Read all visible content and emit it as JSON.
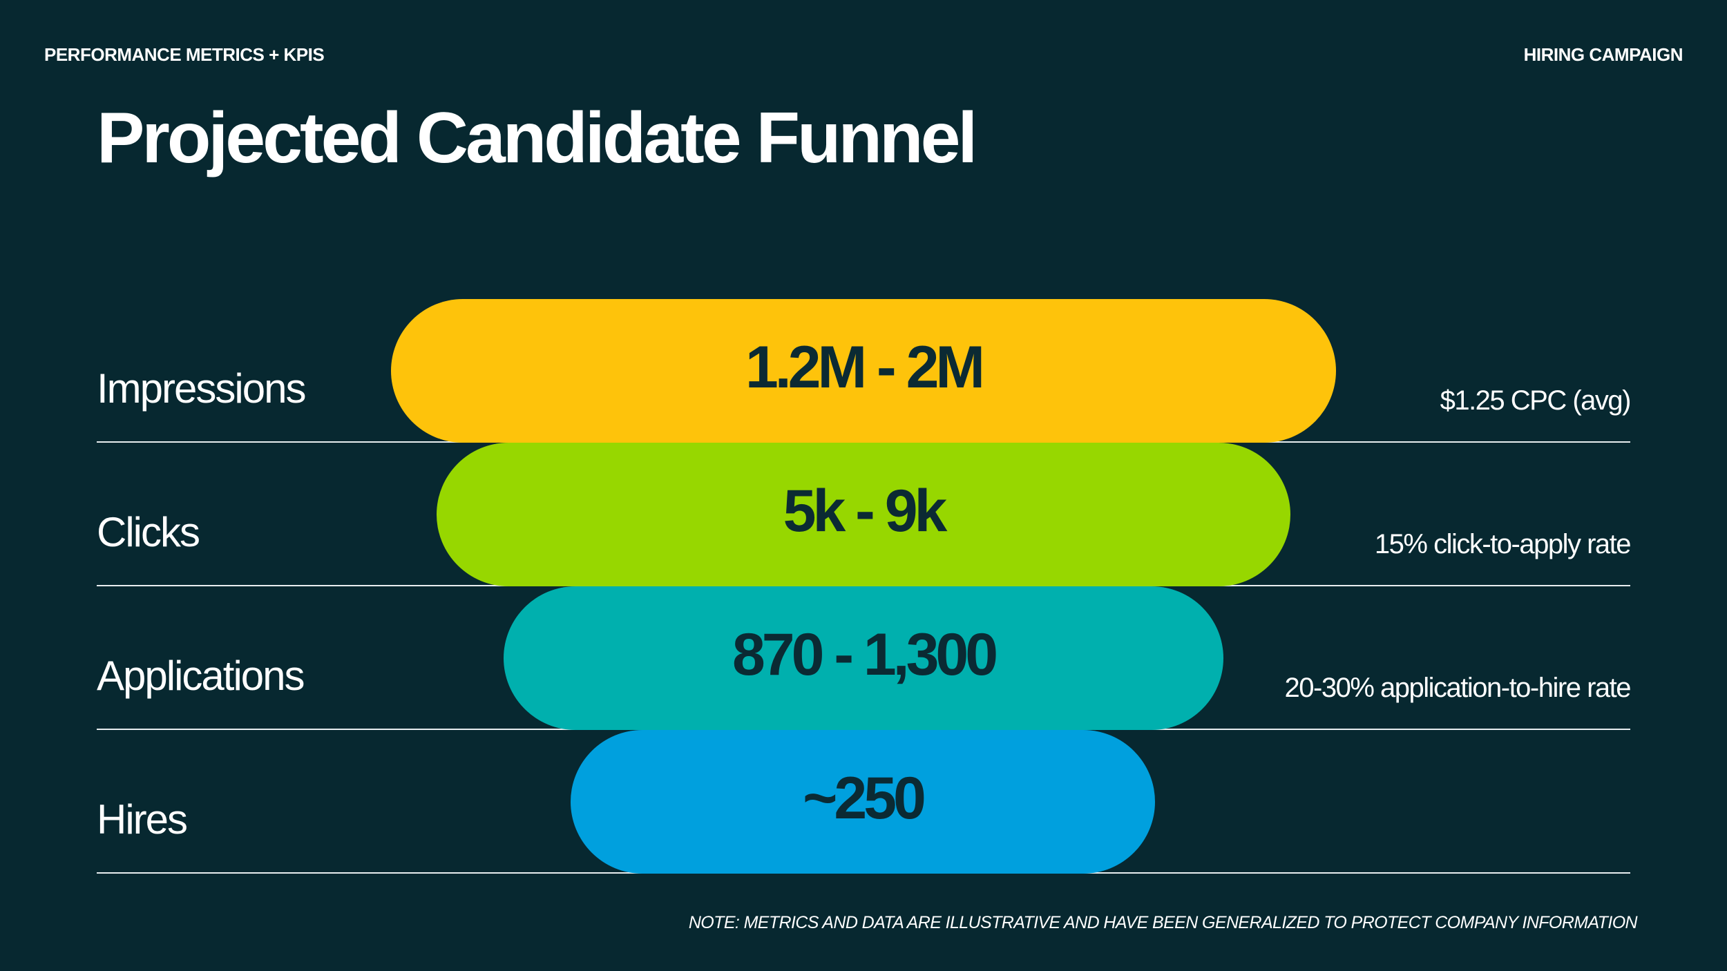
{
  "header": {
    "section_label": "PERFORMANCE METRICS + KPIS",
    "campaign_label": "HIRING CAMPAIGN"
  },
  "title": "Projected Candidate Funnel",
  "funnel": [
    {
      "label": "Impressions",
      "value": "1.2M - 2M",
      "note": "$1.25 CPC (avg)",
      "color": "#FEC30B"
    },
    {
      "label": "Clicks",
      "value": "5k - 9k",
      "note": "15% click-to-apply rate",
      "color": "#97D700"
    },
    {
      "label": "Applications",
      "value": "870 - 1,300",
      "note": "20-30% application-to-hire rate",
      "color": "#00B0AE"
    },
    {
      "label": "Hires",
      "value": "~250",
      "note": "",
      "color": "#00A0DE"
    }
  ],
  "footnote": "NOTE: METRICS AND DATA ARE ILLUSTRATIVE AND HAVE BEEN GENERALIZED TO PROTECT COMPANY INFORMATION"
}
